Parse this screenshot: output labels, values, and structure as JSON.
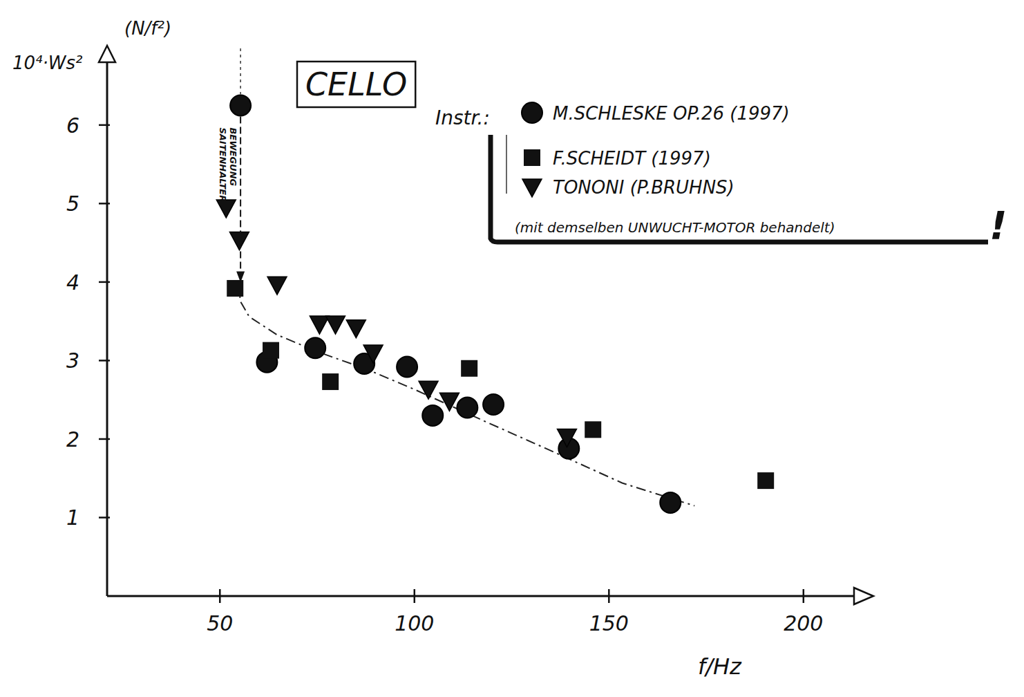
{
  "chart_data": {
    "type": "scatter",
    "title": "CELLO",
    "x_label": "f/Hz",
    "y_label": "10⁴·Ws²",
    "y_label_unit": "(N/f²)",
    "legend_title": "Instr.:",
    "legend_note": "(mit demselben UNWUCHT-MOTOR behandelt)",
    "legend_mark": "!",
    "annotation": "SAITENHALTER BEWEGUNG",
    "xlim": [
      21,
      213
    ],
    "ylim": [
      0,
      6.8
    ],
    "xticks": [
      50,
      100,
      150,
      200
    ],
    "yticks": [
      1,
      2,
      3,
      4,
      5,
      6
    ],
    "grid": false,
    "legend": "top-right",
    "series": [
      {
        "name": "M.SCHLESKE OP.26 (1997)",
        "color": "#111111",
        "marker": "circle",
        "x": [
          55.3,
          62.1,
          74.5,
          87.1,
          98.1,
          104.7,
          113.6,
          120.3,
          139.7,
          165.8
        ],
        "values": [
          6.25,
          2.98,
          3.16,
          2.96,
          2.92,
          2.3,
          2.4,
          2.44,
          1.88,
          1.19
        ]
      },
      {
        "name": "F.SCHEIDT (1997)",
        "color": "#111111",
        "marker": "square",
        "x": [
          53.9,
          63.1,
          78.4,
          114.1,
          145.9,
          190.3
        ],
        "values": [
          3.92,
          3.13,
          2.73,
          2.9,
          2.12,
          1.47
        ]
      },
      {
        "name": "TONONI (P.BRUHNS)",
        "color": "#111111",
        "marker": "triangle",
        "x": [
          51.6,
          55.0,
          64.7,
          75.6,
          79.7,
          85.0,
          89.4,
          103.6,
          109.0,
          139.2
        ],
        "values": [
          4.95,
          4.54,
          3.97,
          3.47,
          3.47,
          3.42,
          3.1,
          2.64,
          2.49,
          2.03
        ]
      },
      {
        "type": "line",
        "line_style": "dashdot",
        "color": "#222222",
        "x": [
          55.0,
          55.2,
          57.5,
          64.6,
          75.2,
          87.7,
          100.1,
          117.9,
          135.6,
          153.4,
          172.0
        ],
        "values": [
          4.0,
          3.76,
          3.56,
          3.33,
          3.11,
          2.89,
          2.63,
          2.23,
          1.84,
          1.44,
          1.15
        ]
      }
    ]
  }
}
